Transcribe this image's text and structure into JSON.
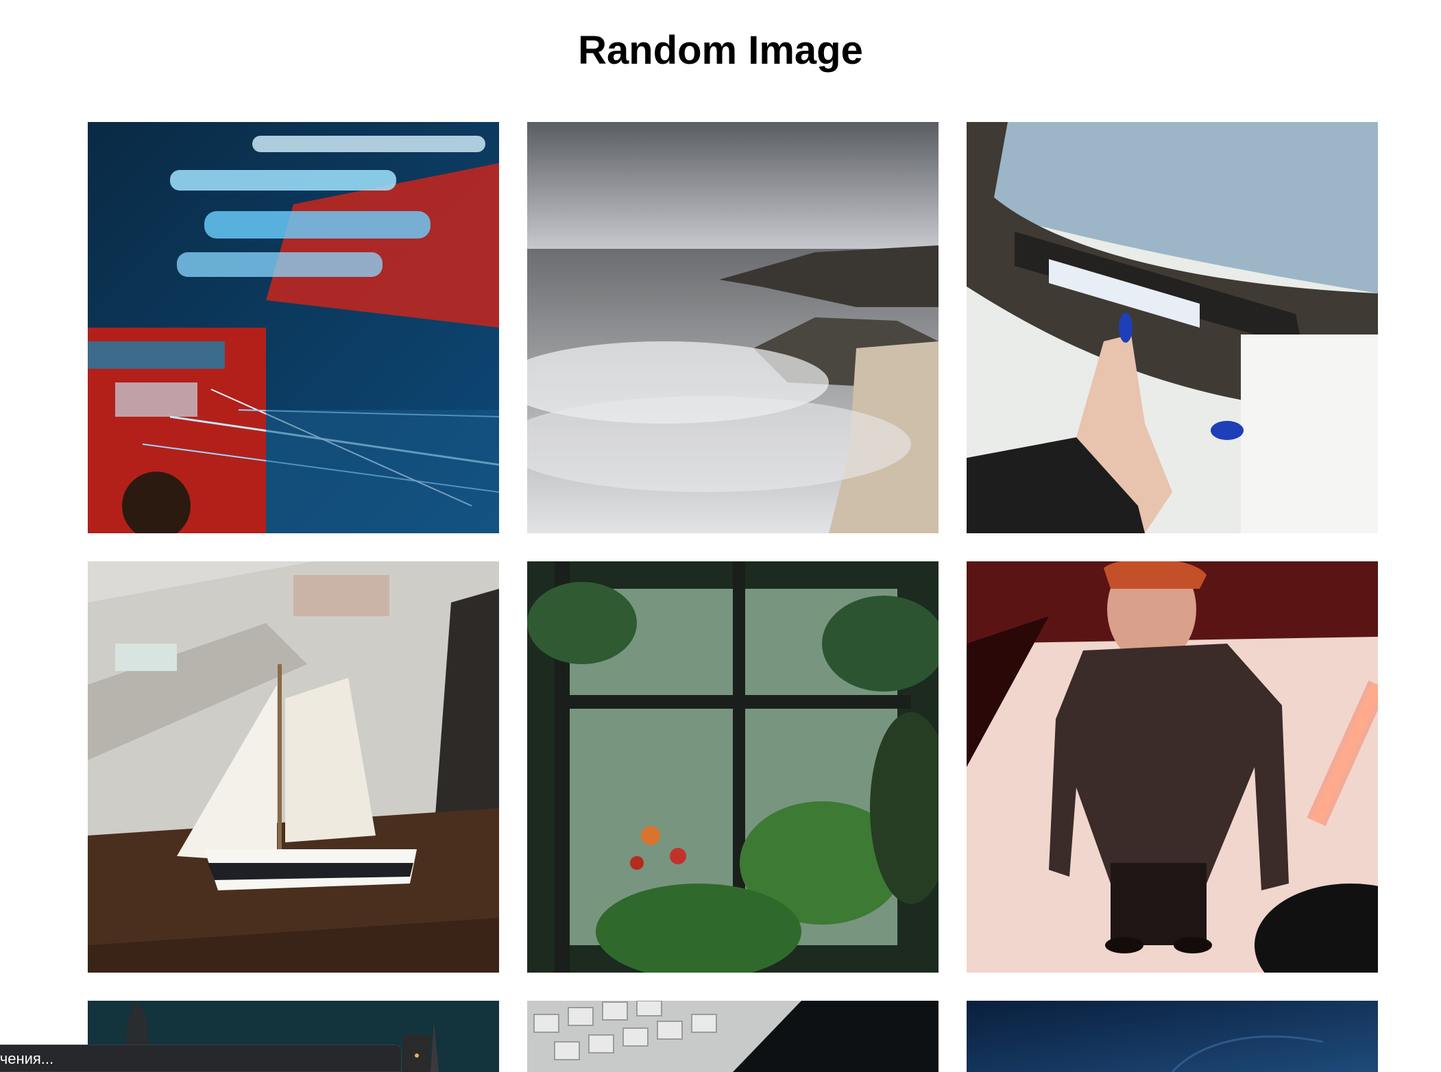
{
  "page": {
    "title": "Random Image"
  },
  "gallery": {
    "images": [
      {
        "subject": "London double-decker bus with blue light trails"
      },
      {
        "subject": "Long exposure sea waves over rocks"
      },
      {
        "subject": "Hand inserting VHS tape into television"
      },
      {
        "subject": "Model sailboat on wooden shelf"
      },
      {
        "subject": "Plants behind rainy greenhouse window"
      },
      {
        "subject": "Person in sequin suit with red light"
      },
      {
        "subject": "City skyline at night"
      },
      {
        "subject": "Keyboard keys close-up"
      },
      {
        "subject": "Dark blue textured surface"
      }
    ]
  },
  "status_bar": {
    "text": "очения..."
  },
  "colors": {
    "background": "#ffffff",
    "status_bar": "#26282b"
  }
}
